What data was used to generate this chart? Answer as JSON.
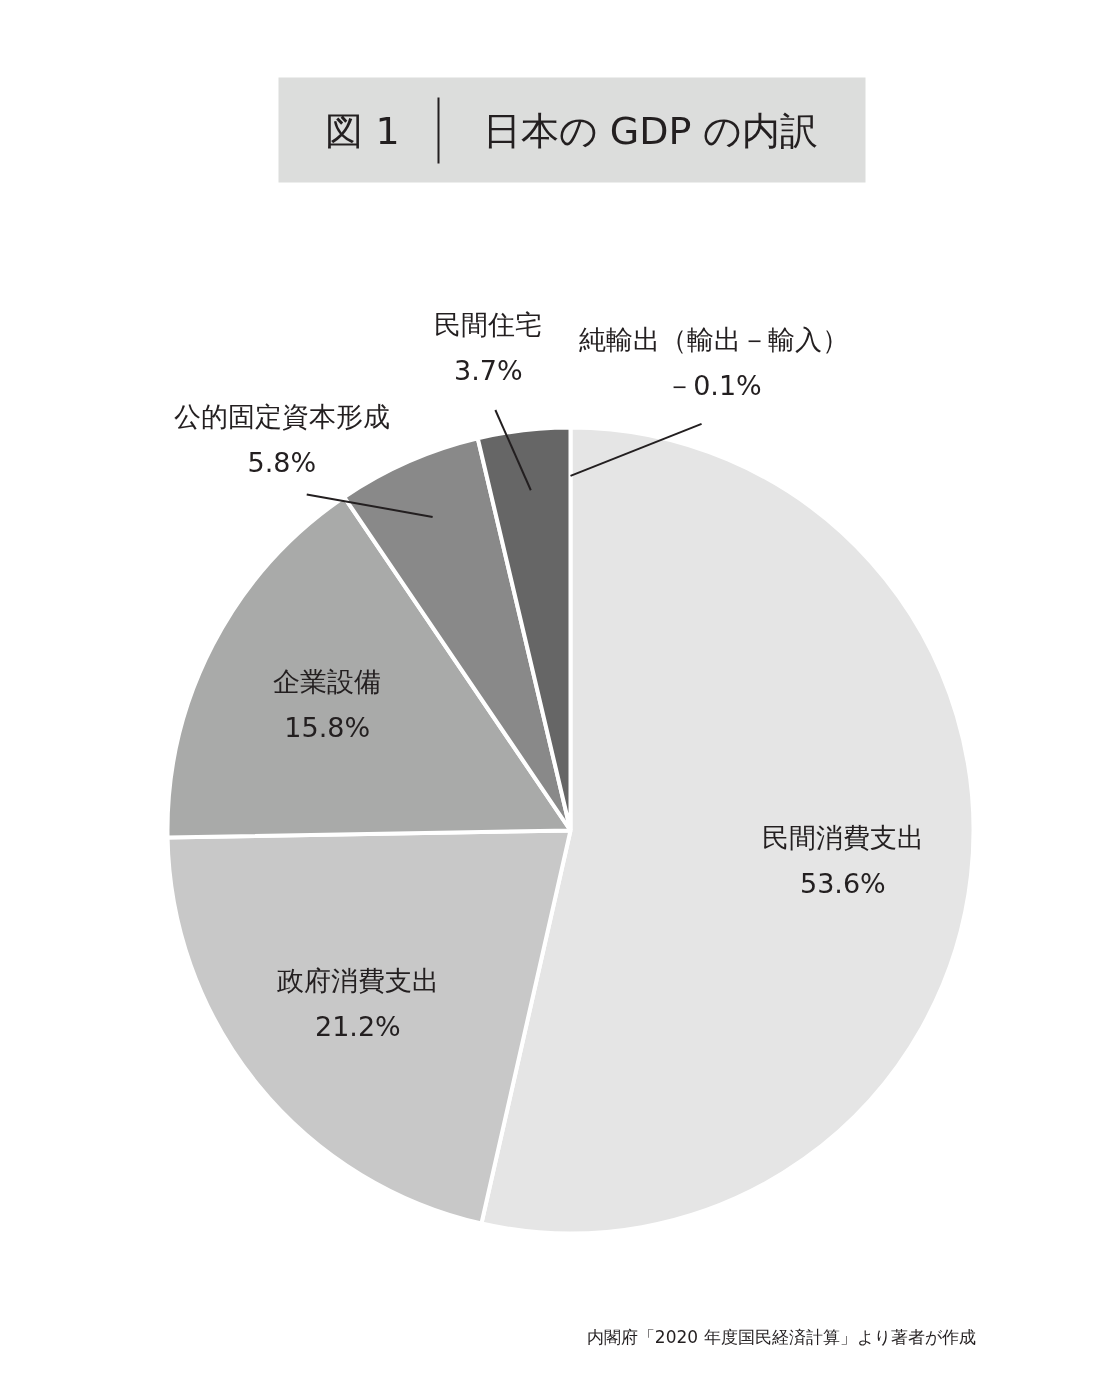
{
  "chart_data": {
    "type": "pie",
    "title": "図 1",
    "subtitle": "日本の GDP の内訳",
    "categories": [
      "民間消費支出",
      "政府消費支出",
      "企業設備",
      "公的固定資本形成",
      "民間住宅"
    ],
    "values": [
      53.6,
      21.2,
      15.8,
      5.8,
      3.7
    ],
    "colors": [
      "#e5e5e5",
      "#c8c8c8",
      "#a9aaa9",
      "#898989",
      "#666666"
    ],
    "value_labels": [
      "53.6%",
      "21.2%",
      "15.8%",
      "5.8%",
      "3.7%"
    ],
    "annotations": [
      "純輸出（輸出－輸入）",
      "－0.1%",
      "内閣府「2020 年度国民経済計算」より著者が作成"
    ]
  }
}
